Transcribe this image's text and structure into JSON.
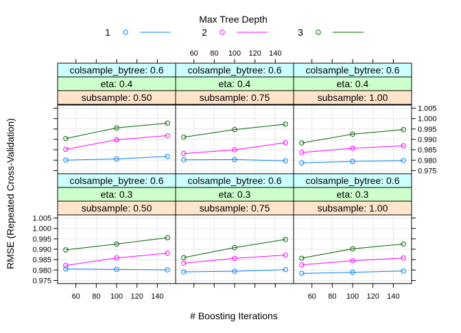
{
  "chart_data": {
    "type": "line",
    "legend": {
      "title": "Max Tree Depth",
      "position": "top",
      "entries": [
        {
          "label": "1",
          "color": "#0080ff"
        },
        {
          "label": "2",
          "color": "#ff00ff"
        },
        {
          "label": "3",
          "color": "#006400"
        }
      ]
    },
    "xlabel": "# Boosting Iterations",
    "ylabel": "RMSE (Repeated Cross-Validation)",
    "xlim": [
      42,
      158
    ],
    "ylim": [
      0.9735,
      1.0065
    ],
    "xticks": [
      "60",
      "80",
      "100",
      "120",
      "140"
    ],
    "xtick_values": [
      60,
      80,
      100,
      120,
      140
    ],
    "yticks": [
      "0.975",
      "0.980",
      "0.985",
      "0.990",
      "0.995",
      "1.000",
      "1.005"
    ],
    "ytick_values": [
      0.975,
      0.98,
      0.985,
      0.99,
      0.995,
      1.0,
      1.005
    ],
    "x": [
      50,
      100,
      150
    ],
    "grid": true,
    "strip_colors": {
      "colsample": "#ccffff",
      "eta": "#ccffcc",
      "subsample": "#ffe5cc"
    },
    "panels": [
      {
        "colsample": "colsample_bytree: 0.6",
        "eta": "eta: 0.4",
        "subsample": "subsample: 0.50",
        "series": [
          {
            "values": [
              0.98,
              0.9806,
              0.9818
            ]
          },
          {
            "values": [
              0.9852,
              0.9898,
              0.9918
            ]
          },
          {
            "values": [
              0.9904,
              0.9955,
              0.9978
            ]
          }
        ]
      },
      {
        "colsample": "colsample_bytree: 0.6",
        "eta": "eta: 0.4",
        "subsample": "subsample: 0.75",
        "series": [
          {
            "values": [
              0.9802,
              0.9803,
              0.9797
            ]
          },
          {
            "values": [
              0.9832,
              0.985,
              0.9884
            ]
          },
          {
            "values": [
              0.9911,
              0.9947,
              0.9973
            ]
          }
        ]
      },
      {
        "colsample": "colsample_bytree: 0.6",
        "eta": "eta: 0.4",
        "subsample": "subsample: 1.00",
        "series": [
          {
            "values": [
              0.9787,
              0.9794,
              0.9798
            ]
          },
          {
            "values": [
              0.9837,
              0.9857,
              0.9869
            ]
          },
          {
            "values": [
              0.9883,
              0.9925,
              0.9947
            ]
          }
        ]
      },
      {
        "colsample": "colsample_bytree: 0.6",
        "eta": "eta: 0.3",
        "subsample": "subsample: 0.50",
        "series": [
          {
            "values": [
              0.9805,
              0.9803,
              0.9801
            ]
          },
          {
            "values": [
              0.9822,
              0.9858,
              0.9881
            ]
          },
          {
            "values": [
              0.9897,
              0.9925,
              0.9955
            ]
          }
        ]
      },
      {
        "colsample": "colsample_bytree: 0.6",
        "eta": "eta: 0.3",
        "subsample": "subsample: 0.75",
        "series": [
          {
            "values": [
              0.9791,
              0.9794,
              0.9802
            ]
          },
          {
            "values": [
              0.9833,
              0.9856,
              0.9872
            ]
          },
          {
            "values": [
              0.986,
              0.9908,
              0.9947
            ]
          }
        ]
      },
      {
        "colsample": "colsample_bytree: 0.6",
        "eta": "eta: 0.3",
        "subsample": "subsample: 1.00",
        "series": [
          {
            "values": [
              0.9784,
              0.9789,
              0.9795
            ]
          },
          {
            "values": [
              0.9825,
              0.9845,
              0.9858
            ]
          },
          {
            "values": [
              0.9857,
              0.9902,
              0.9925
            ]
          }
        ]
      }
    ]
  }
}
